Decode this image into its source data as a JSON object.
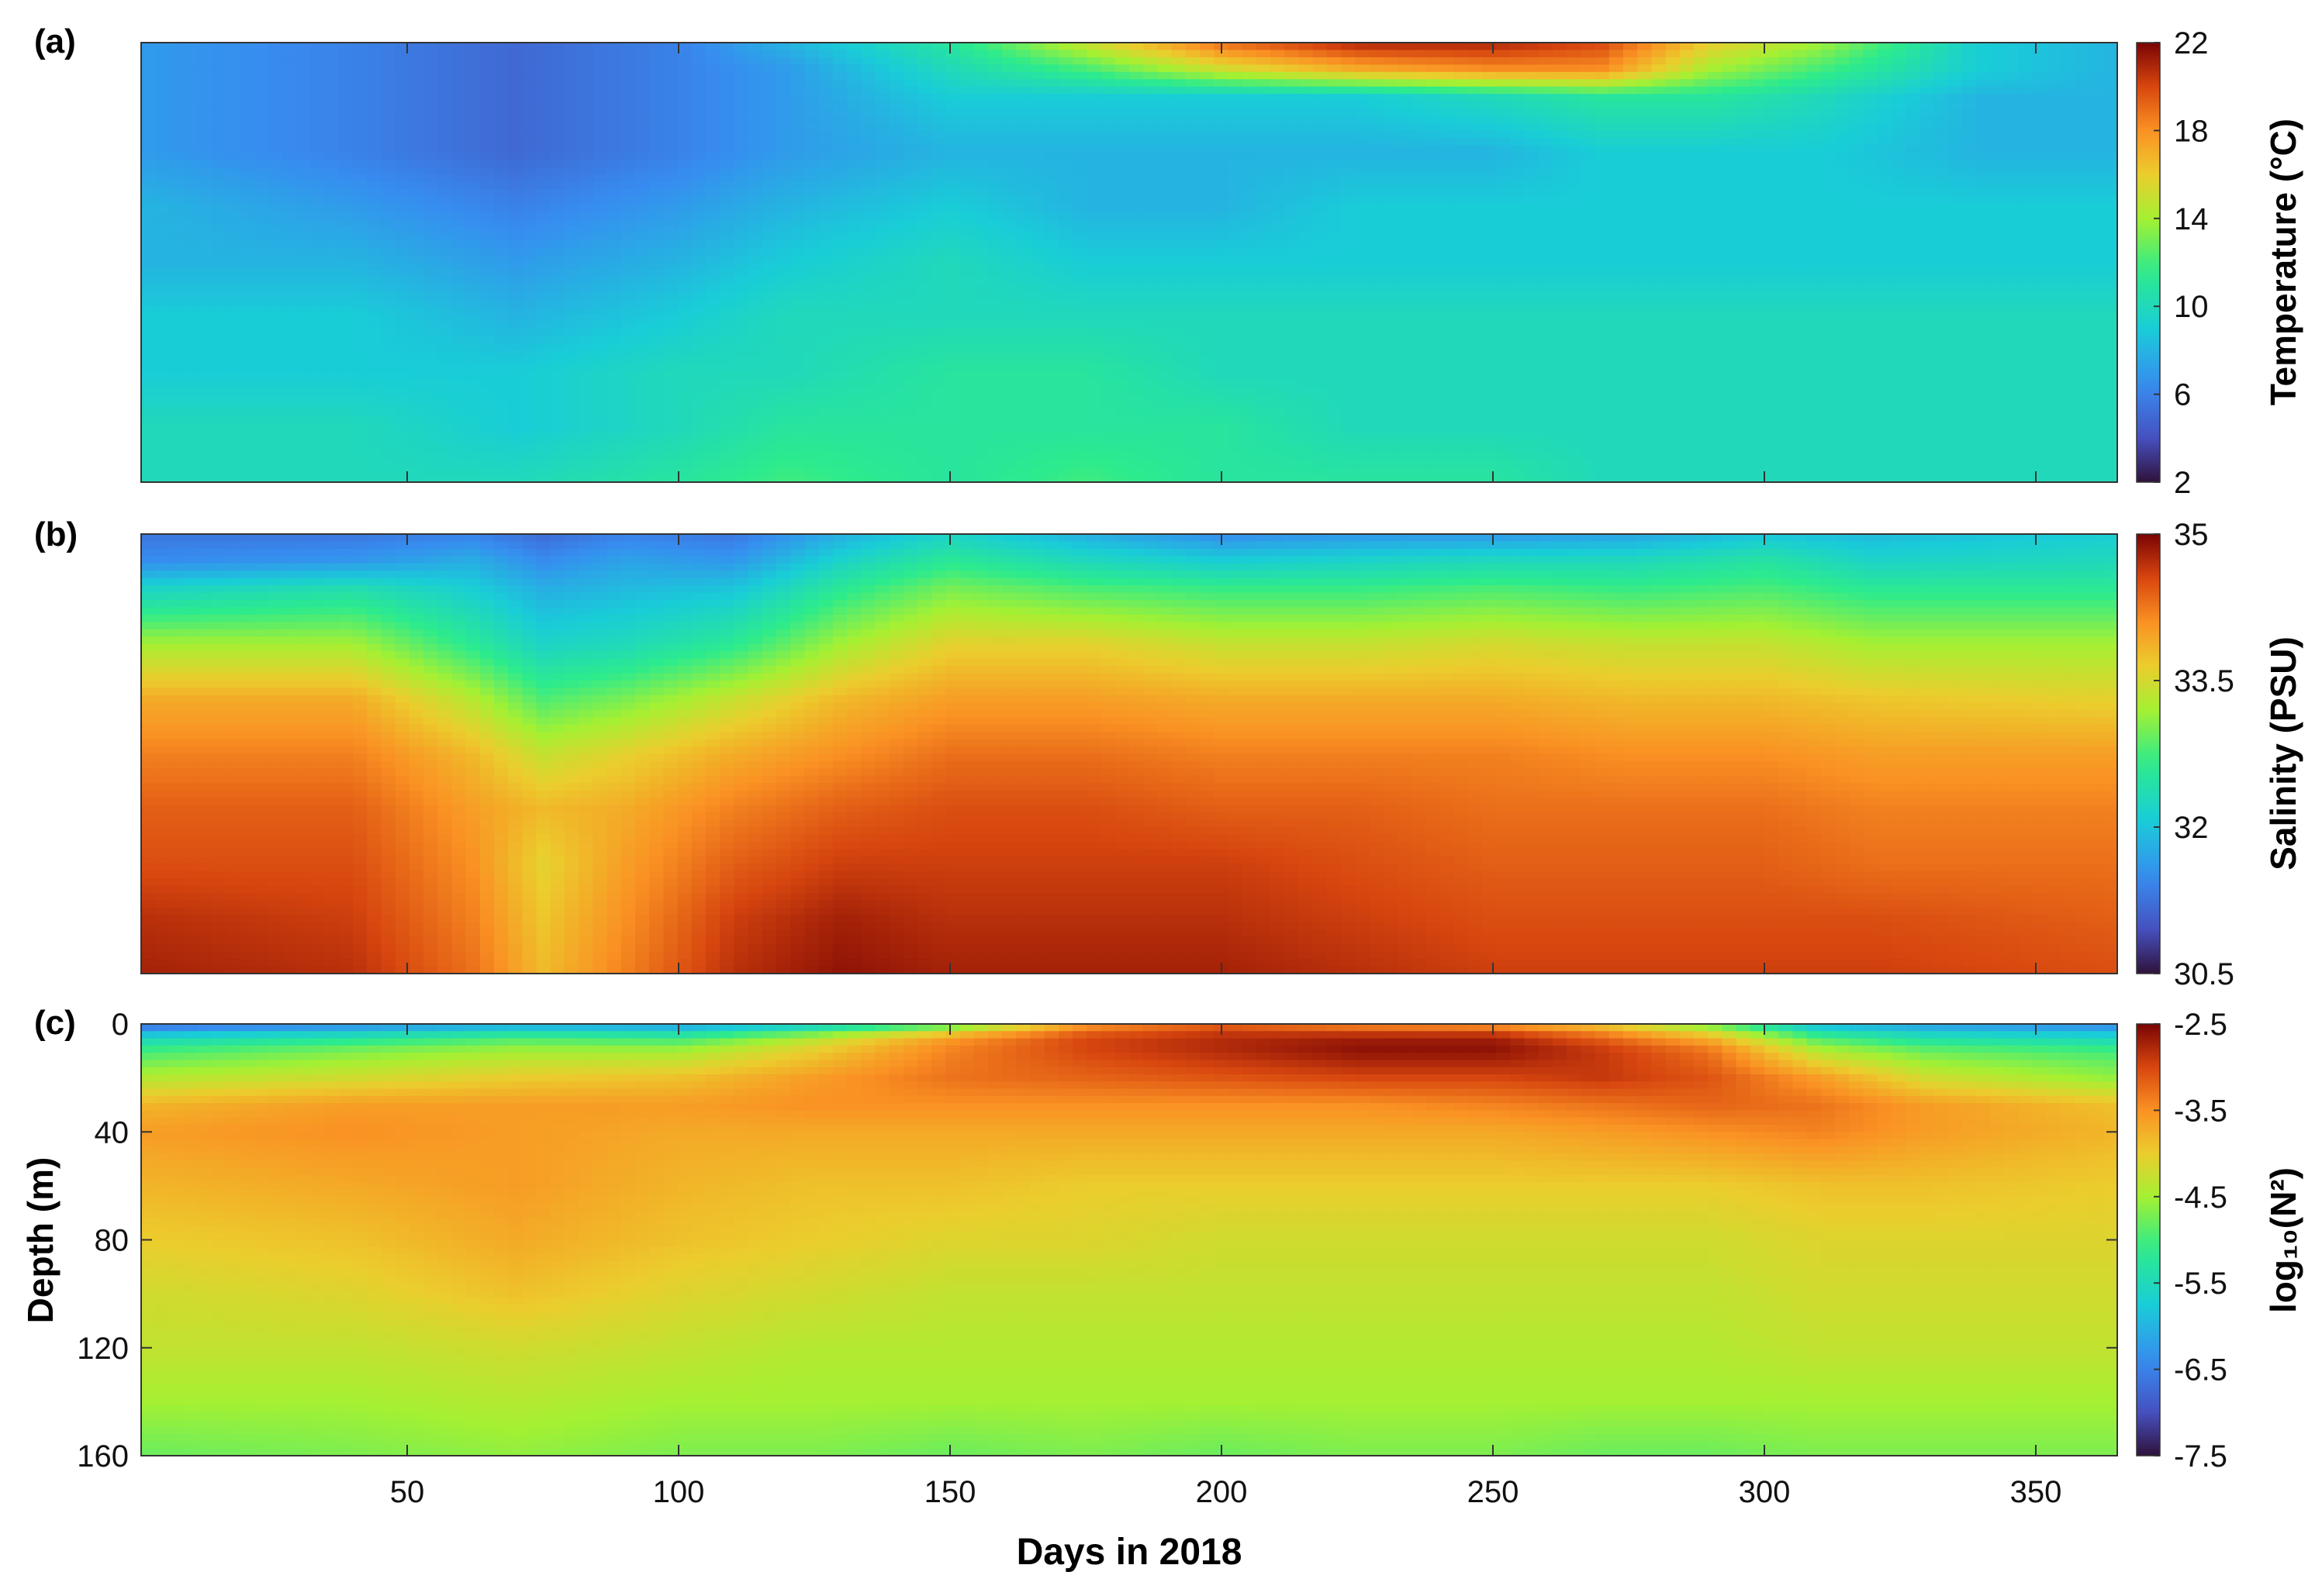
{
  "figure": {
    "xlabel": "Days in 2018",
    "xticks": [
      50,
      100,
      150,
      200,
      250,
      300,
      350
    ],
    "xlim": [
      1,
      365
    ]
  },
  "chart_data": [
    {
      "type": "heatmap",
      "panel_label": "(a)",
      "colorbar_label": "Temperature (°C)",
      "color_range": [
        2,
        22
      ],
      "colorbar_ticks": [
        "22",
        "18",
        "14",
        "10",
        "6",
        "2"
      ],
      "colorbar_tick_values": [
        22,
        18,
        14,
        10,
        6,
        2
      ],
      "x": [
        1,
        40,
        70,
        100,
        120,
        150,
        175,
        200,
        225,
        250,
        270,
        290,
        310,
        340,
        365
      ],
      "y": [
        0,
        10,
        20,
        40,
        60,
        80,
        100,
        120,
        140,
        160
      ],
      "z": [
        [
          7,
          6,
          5,
          6,
          8,
          11,
          15,
          19,
          21,
          21,
          20,
          16,
          14,
          9,
          8
        ],
        [
          7,
          6,
          5,
          6,
          7,
          10,
          12,
          15,
          17,
          18,
          18,
          14,
          12,
          9,
          8
        ],
        [
          7,
          6,
          5,
          6,
          7,
          9,
          9,
          9,
          9,
          10,
          11,
          11,
          10,
          8,
          8
        ],
        [
          7,
          6,
          5,
          6,
          7,
          8,
          8,
          8,
          8,
          8,
          9,
          9,
          9,
          8,
          8
        ],
        [
          8,
          7,
          6,
          7,
          8,
          9,
          8,
          8,
          9,
          9,
          9,
          9,
          9,
          9,
          9
        ],
        [
          8,
          8,
          7,
          8,
          9,
          10,
          9,
          9,
          9,
          9,
          9,
          9,
          9,
          9,
          9
        ],
        [
          9,
          9,
          8,
          9,
          10,
          10,
          10,
          10,
          10,
          10,
          10,
          10,
          10,
          10,
          10
        ],
        [
          9,
          9,
          9,
          10,
          10,
          11,
          11,
          10,
          10,
          10,
          10,
          10,
          10,
          10,
          10
        ],
        [
          10,
          10,
          9,
          10,
          11,
          11,
          11,
          11,
          10,
          10,
          10,
          10,
          10,
          10,
          10
        ],
        [
          10,
          10,
          10,
          11,
          12,
          11,
          12,
          11,
          11,
          11,
          10,
          10,
          10,
          10,
          10
        ]
      ]
    },
    {
      "type": "heatmap",
      "panel_label": "(b)",
      "colorbar_label": "Salinity (PSU)",
      "color_range": [
        30.5,
        35
      ],
      "colorbar_ticks": [
        "35",
        "33.5",
        "32",
        "30.5"
      ],
      "colorbar_tick_values": [
        35,
        33.5,
        32,
        30.5
      ],
      "x": [
        1,
        40,
        62,
        75,
        90,
        110,
        130,
        150,
        175,
        200,
        225,
        250,
        275,
        300,
        320,
        365
      ],
      "y": [
        0,
        10,
        20,
        40,
        60,
        80,
        100,
        120,
        140,
        160
      ],
      "z": [
        [
          31.3,
          31.3,
          31.4,
          31.2,
          31.4,
          31.3,
          31.8,
          32.2,
          31.8,
          31.5,
          31.6,
          31.6,
          31.7,
          32.0,
          31.9,
          32.1
        ],
        [
          31.5,
          31.6,
          31.8,
          31.5,
          31.7,
          31.6,
          32.2,
          32.6,
          32.3,
          32.1,
          32.2,
          32.3,
          32.3,
          32.5,
          32.2,
          32.3
        ],
        [
          32.2,
          32.4,
          32.1,
          31.8,
          31.9,
          32.0,
          32.6,
          33.0,
          32.8,
          32.7,
          32.7,
          32.8,
          32.7,
          32.8,
          32.6,
          32.6
        ],
        [
          33.2,
          33.2,
          32.6,
          32.2,
          32.3,
          32.6,
          33.2,
          33.6,
          33.6,
          33.4,
          33.4,
          33.5,
          33.4,
          33.4,
          33.2,
          33.2
        ],
        [
          33.9,
          33.9,
          33.3,
          32.8,
          33.0,
          33.4,
          33.8,
          34.0,
          34.0,
          33.9,
          33.9,
          33.9,
          33.8,
          33.8,
          33.7,
          33.6
        ],
        [
          34.2,
          34.2,
          33.8,
          33.4,
          33.6,
          33.9,
          34.1,
          34.3,
          34.3,
          34.2,
          34.2,
          34.2,
          34.1,
          34.1,
          34.0,
          34.0
        ],
        [
          34.4,
          34.4,
          34.0,
          33.8,
          33.9,
          34.2,
          34.4,
          34.5,
          34.5,
          34.4,
          34.4,
          34.3,
          34.3,
          34.3,
          34.2,
          34.2
        ],
        [
          34.5,
          34.5,
          34.1,
          33.6,
          34.0,
          34.4,
          34.6,
          34.6,
          34.6,
          34.6,
          34.5,
          34.4,
          34.4,
          34.4,
          34.3,
          34.3
        ],
        [
          34.7,
          34.6,
          34.2,
          33.7,
          34.1,
          34.6,
          34.8,
          34.7,
          34.7,
          34.7,
          34.6,
          34.5,
          34.5,
          34.5,
          34.5,
          34.4
        ],
        [
          34.8,
          34.7,
          34.3,
          33.8,
          34.2,
          34.7,
          34.9,
          34.8,
          34.8,
          34.8,
          34.7,
          34.6,
          34.6,
          34.6,
          34.6,
          34.5
        ]
      ]
    },
    {
      "type": "heatmap",
      "panel_label": "(c)",
      "colorbar_label": "log₁₀(N²)",
      "ylabel": "Depth (m)",
      "yticks": [
        0,
        40,
        80,
        120,
        160
      ],
      "color_range": [
        -7.5,
        -2.5
      ],
      "colorbar_ticks": [
        "-2.5",
        "-3.5",
        "-4.5",
        "-5.5",
        "-6.5",
        "-7.5"
      ],
      "colorbar_tick_values": [
        -2.5,
        -3.5,
        -4.5,
        -5.5,
        -6.5,
        -7.5
      ],
      "x": [
        1,
        40,
        70,
        100,
        125,
        150,
        175,
        200,
        225,
        250,
        270,
        290,
        310,
        330,
        365
      ],
      "y": [
        0,
        5,
        10,
        20,
        30,
        40,
        60,
        80,
        100,
        120,
        140,
        160
      ],
      "z": [
        [
          -6.8,
          -6.5,
          -6.2,
          -6.3,
          -5.8,
          -5.0,
          -3.6,
          -3.2,
          -3.5,
          -3.6,
          -4.0,
          -4.8,
          -6.0,
          -6.3,
          -6.5
        ],
        [
          -5.6,
          -5.3,
          -5.0,
          -5.1,
          -4.4,
          -3.6,
          -3.0,
          -2.8,
          -2.7,
          -2.7,
          -3.2,
          -3.8,
          -5.0,
          -5.4,
          -5.6
        ],
        [
          -5.0,
          -4.7,
          -4.5,
          -4.5,
          -4.0,
          -3.4,
          -3.0,
          -2.8,
          -2.6,
          -2.6,
          -2.9,
          -3.3,
          -4.4,
          -4.8,
          -5.0
        ],
        [
          -4.4,
          -4.2,
          -4.0,
          -3.9,
          -3.6,
          -3.3,
          -3.2,
          -3.1,
          -3.0,
          -3.0,
          -2.9,
          -3.1,
          -3.6,
          -4.2,
          -4.6
        ],
        [
          -3.8,
          -3.6,
          -3.6,
          -3.6,
          -3.5,
          -3.5,
          -3.5,
          -3.5,
          -3.5,
          -3.4,
          -3.3,
          -3.2,
          -3.3,
          -3.6,
          -3.9
        ],
        [
          -3.6,
          -3.5,
          -3.6,
          -3.7,
          -3.7,
          -3.7,
          -3.7,
          -3.7,
          -3.7,
          -3.7,
          -3.6,
          -3.5,
          -3.4,
          -3.6,
          -3.8
        ],
        [
          -3.8,
          -3.7,
          -3.6,
          -3.8,
          -3.9,
          -3.9,
          -4.0,
          -4.0,
          -4.0,
          -4.0,
          -4.0,
          -4.0,
          -3.9,
          -3.9,
          -4.0
        ],
        [
          -4.0,
          -3.9,
          -3.7,
          -3.9,
          -4.0,
          -4.1,
          -4.1,
          -4.2,
          -4.2,
          -4.2,
          -4.2,
          -4.2,
          -4.1,
          -4.1,
          -4.1
        ],
        [
          -4.2,
          -4.1,
          -3.9,
          -4.1,
          -4.2,
          -4.3,
          -4.3,
          -4.3,
          -4.3,
          -4.3,
          -4.3,
          -4.3,
          -4.2,
          -4.2,
          -4.2
        ],
        [
          -4.3,
          -4.3,
          -4.2,
          -4.3,
          -4.4,
          -4.4,
          -4.4,
          -4.4,
          -4.4,
          -4.4,
          -4.4,
          -4.4,
          -4.3,
          -4.3,
          -4.3
        ],
        [
          -4.5,
          -4.5,
          -4.4,
          -4.5,
          -4.5,
          -4.5,
          -4.5,
          -4.5,
          -4.5,
          -4.5,
          -4.5,
          -4.5,
          -4.5,
          -4.5,
          -4.5
        ],
        [
          -4.8,
          -4.7,
          -4.6,
          -4.7,
          -4.7,
          -4.8,
          -4.7,
          -4.8,
          -4.7,
          -4.7,
          -4.8,
          -4.8,
          -4.7,
          -4.7,
          -4.7
        ]
      ]
    }
  ]
}
